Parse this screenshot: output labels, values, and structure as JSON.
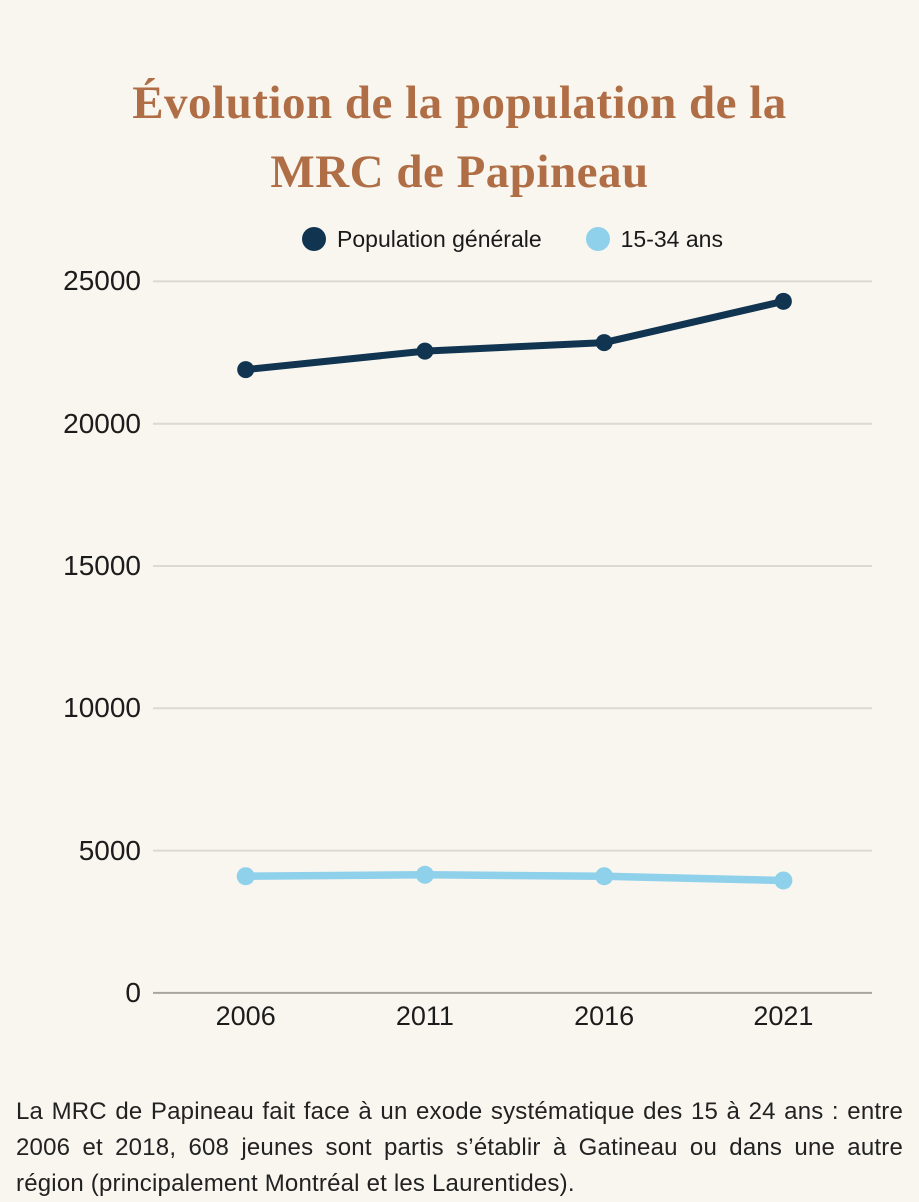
{
  "title": {
    "line1": "Évolution de la population de la",
    "line2": "MRC de Papineau"
  },
  "chart_data": {
    "type": "line",
    "title": "Évolution de la population de la MRC de Papineau",
    "categories": [
      "2006",
      "2011",
      "2016",
      "2021"
    ],
    "series": [
      {
        "name": "Population générale",
        "values": [
          21900,
          22550,
          22850,
          24300
        ],
        "color": "#113450"
      },
      {
        "name": "15-34 ans",
        "values": [
          4100,
          4150,
          4100,
          3950
        ],
        "color": "#8fd0ea"
      }
    ],
    "yticks": [
      0,
      5000,
      10000,
      15000,
      20000,
      25000
    ],
    "ylim": [
      0,
      26000
    ],
    "xlabel": "",
    "ylabel": "",
    "grid": "horizontal",
    "legend_position": "top",
    "colors": {
      "background": "#f8f6ef",
      "title": "#b06e46",
      "gridline": "#dcd9d2",
      "axis_line": "#a8a59d",
      "tick_text": "#1c1c1c"
    }
  },
  "caption": "La MRC de Papineau fait face à un exode systématique des 15 à 24 ans : entre 2006 et 2018, 608 jeunes sont partis s’établir à Gatineau ou dans une autre région (principalement Montréal  et les Laurentides)."
}
